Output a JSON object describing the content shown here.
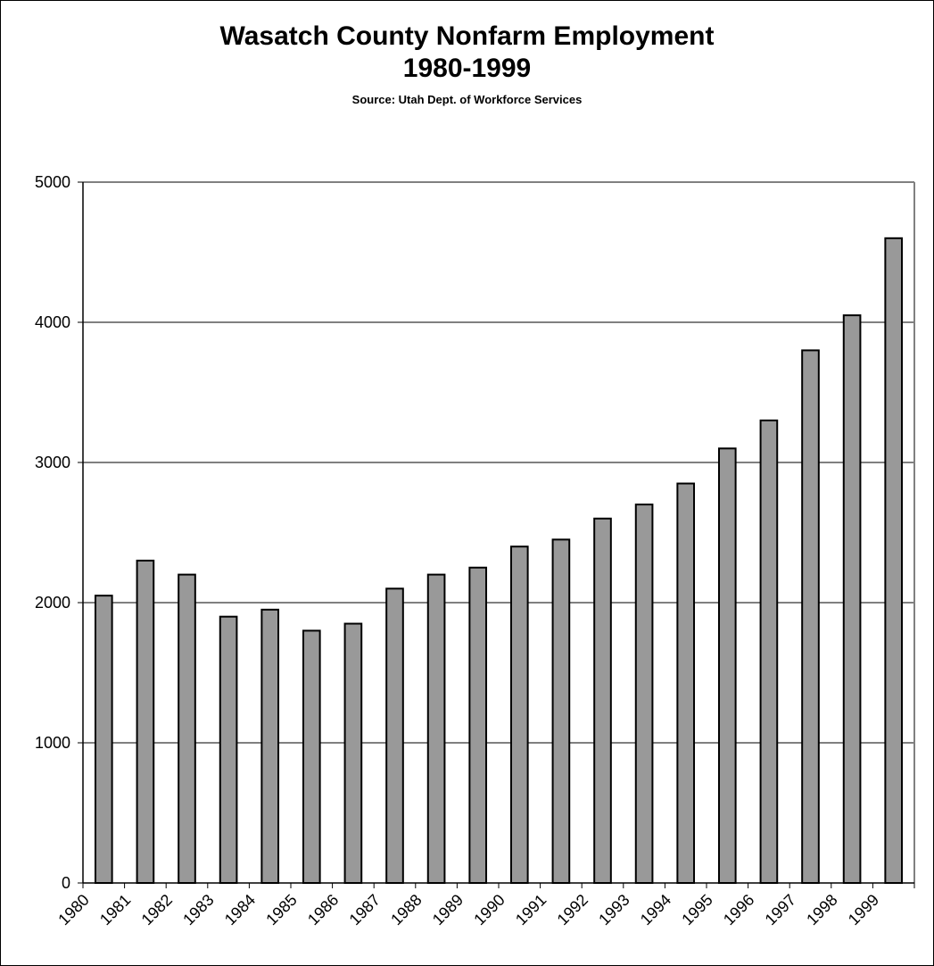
{
  "chart_data": {
    "type": "bar",
    "title": "Wasatch County Nonfarm Employment",
    "subtitle": "1980-1999",
    "source": "Source: Utah Dept. of Workforce Services",
    "xlabel": "",
    "ylabel": "",
    "categories": [
      "1980",
      "1981",
      "1982",
      "1983",
      "1984",
      "1985",
      "1986",
      "1987",
      "1988",
      "1989",
      "1990",
      "1991",
      "1992",
      "1993",
      "1994",
      "1995",
      "1996",
      "1997",
      "1998",
      "1999"
    ],
    "values": [
      2050,
      2300,
      2200,
      1900,
      1950,
      1800,
      1850,
      2100,
      2200,
      2250,
      2400,
      2450,
      2600,
      2700,
      2850,
      3100,
      3300,
      3800,
      4050,
      4600
    ],
    "ylim": [
      0,
      5000
    ],
    "yticks": [
      0,
      1000,
      2000,
      3000,
      4000,
      5000
    ],
    "grid": true,
    "legend": "none",
    "bar_color": "#999999",
    "bar_edge_color": "#000000"
  }
}
